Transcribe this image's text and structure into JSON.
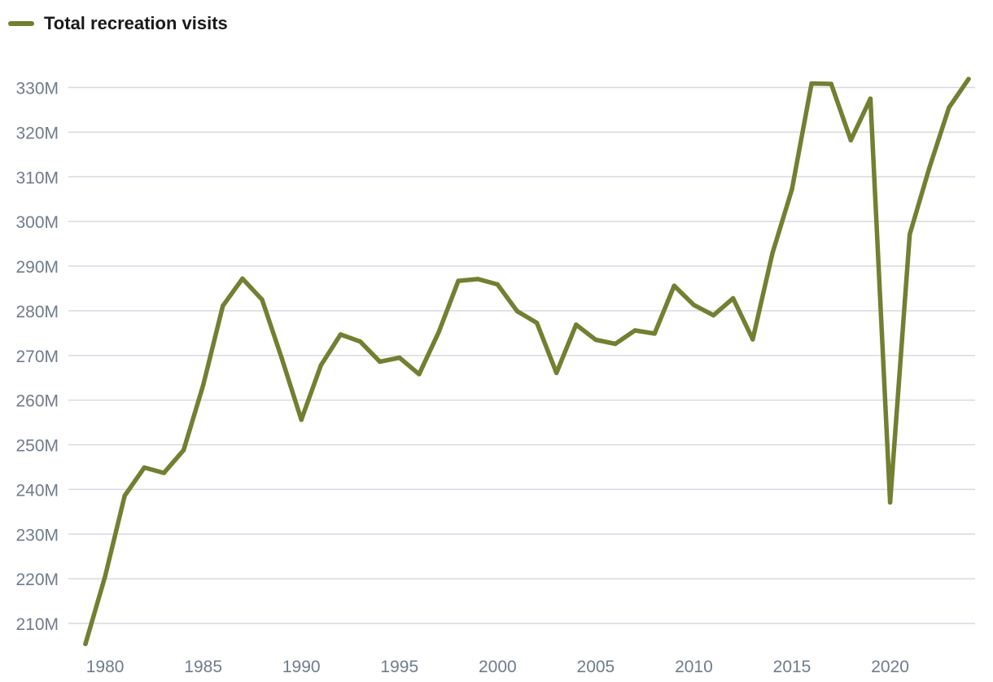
{
  "chart_data": {
    "type": "line",
    "title": "",
    "xlabel": "",
    "ylabel": "",
    "legend": {
      "placement": "top-left"
    },
    "grid": {
      "horizontal": true,
      "vertical": false
    },
    "xlim": [
      1979,
      2024
    ],
    "ylim": [
      205,
      333
    ],
    "x_ticks": [
      1980,
      1985,
      1990,
      1995,
      2000,
      2005,
      2010,
      2015,
      2020
    ],
    "y_ticks": [
      210,
      220,
      230,
      240,
      250,
      260,
      270,
      280,
      290,
      300,
      310,
      320,
      330
    ],
    "y_tick_labels": [
      "210M",
      "220M",
      "230M",
      "240M",
      "250M",
      "260M",
      "270M",
      "280M",
      "290M",
      "300M",
      "310M",
      "320M",
      "330M"
    ],
    "series": [
      {
        "name": "Total recreation visits",
        "color": "#737f31",
        "x": [
          1979,
          1980,
          1981,
          1982,
          1983,
          1984,
          1985,
          1986,
          1987,
          1988,
          1989,
          1990,
          1991,
          1992,
          1993,
          1994,
          1995,
          1996,
          1997,
          1998,
          1999,
          2000,
          2001,
          2002,
          2003,
          2004,
          2005,
          2006,
          2007,
          2008,
          2009,
          2010,
          2011,
          2012,
          2013,
          2014,
          2015,
          2016,
          2017,
          2018,
          2019,
          2020,
          2021,
          2022,
          2023,
          2024
        ],
        "values": [
          205.4,
          220.5,
          238.6,
          244.9,
          243.7,
          248.8,
          263.4,
          281.1,
          287.2,
          282.5,
          269.4,
          255.6,
          267.8,
          274.7,
          273.1,
          268.6,
          269.5,
          265.8,
          275.2,
          286.7,
          287.1,
          285.9,
          279.9,
          277.3,
          266.1,
          276.9,
          273.5,
          272.6,
          275.6,
          274.9,
          285.6,
          281.3,
          279.0,
          282.8,
          273.6,
          292.8,
          307.2,
          330.9,
          330.8,
          318.2,
          327.5,
          237.1,
          297.1,
          312.0,
          325.5,
          331.9
        ]
      }
    ]
  }
}
